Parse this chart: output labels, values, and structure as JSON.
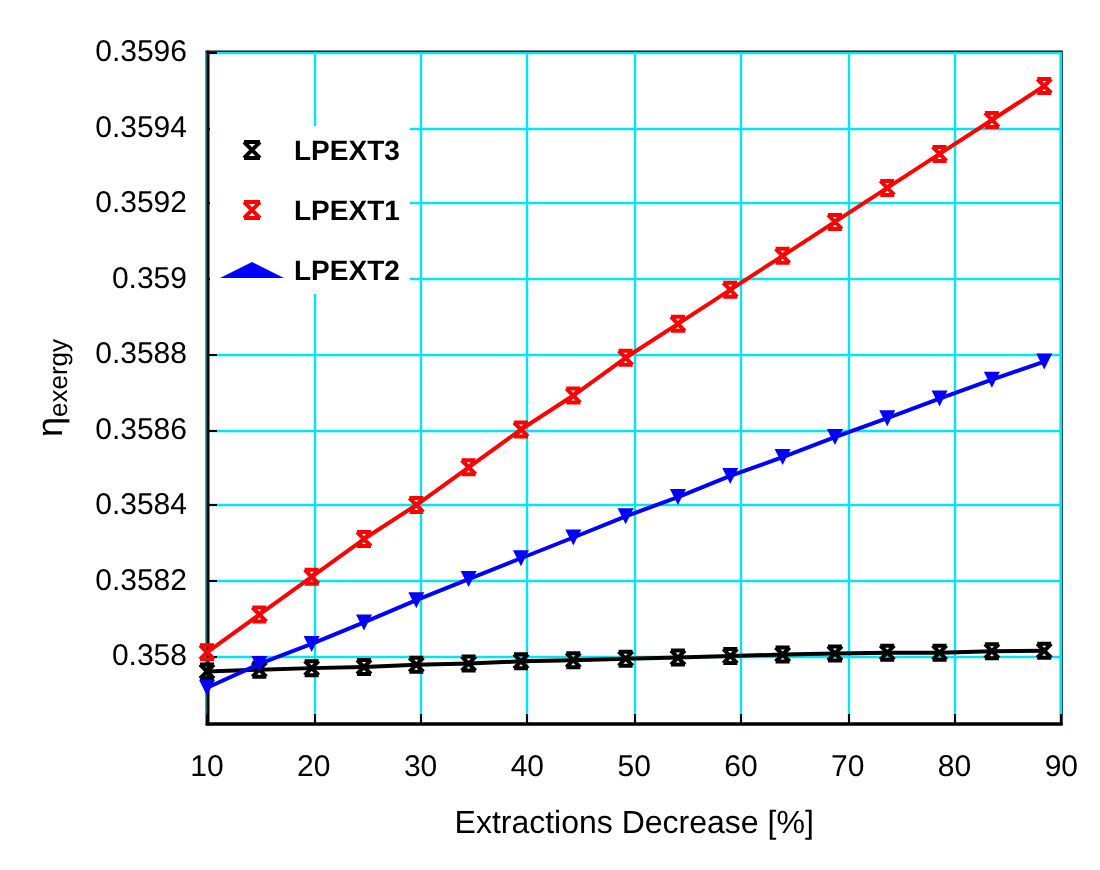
{
  "chart_data": {
    "type": "line",
    "xlabel": "Extractions Decrease [%]",
    "ylabel": "η$_{exergy}$",
    "x": [
      10,
      14.9,
      19.8,
      24.7,
      29.6,
      34.5,
      39.4,
      44.3,
      49.2,
      54.1,
      59,
      63.9,
      68.8,
      73.7,
      78.6,
      83.5,
      88.4
    ],
    "series": [
      {
        "name": "LPEXT3",
        "color": "#000000",
        "marker": "cross",
        "values": [
          0.357959,
          0.357964,
          0.357968,
          0.357971,
          0.357977,
          0.35798,
          0.357986,
          0.357989,
          0.357993,
          0.357996,
          0.358,
          0.358004,
          0.358007,
          0.358009,
          0.358009,
          0.358013,
          0.358014
        ]
      },
      {
        "name": "LPEXT1",
        "color": "#ff0000",
        "marker": "cross",
        "values": [
          0.35801,
          0.35811,
          0.35821,
          0.35831,
          0.3584,
          0.3585,
          0.3586,
          0.35869,
          0.35879,
          0.35888,
          0.35897,
          0.35906,
          0.35915,
          0.35924,
          0.35933,
          0.35942,
          0.35951
        ]
      },
      {
        "name": "LPEXT2",
        "color": "#0000ff",
        "marker": "triangle",
        "values": [
          0.357916,
          0.357979,
          0.358032,
          0.358089,
          0.358148,
          0.358204,
          0.358259,
          0.358314,
          0.35837,
          0.358421,
          0.358477,
          0.358527,
          0.35858,
          0.35863,
          0.358682,
          0.358732,
          0.35878
        ]
      }
    ],
    "xlim": [
      10,
      90
    ],
    "xticks": [
      10,
      20,
      30,
      40,
      50,
      60,
      70,
      80,
      90
    ],
    "ylim": [
      0.35782,
      0.3596
    ],
    "yticks": [
      0.358,
      0.3582,
      0.3584,
      0.3586,
      0.3588,
      0.359,
      0.3592,
      0.3594,
      0.3596
    ],
    "grid": true,
    "legend": "top left",
    "line_style": "solid"
  }
}
